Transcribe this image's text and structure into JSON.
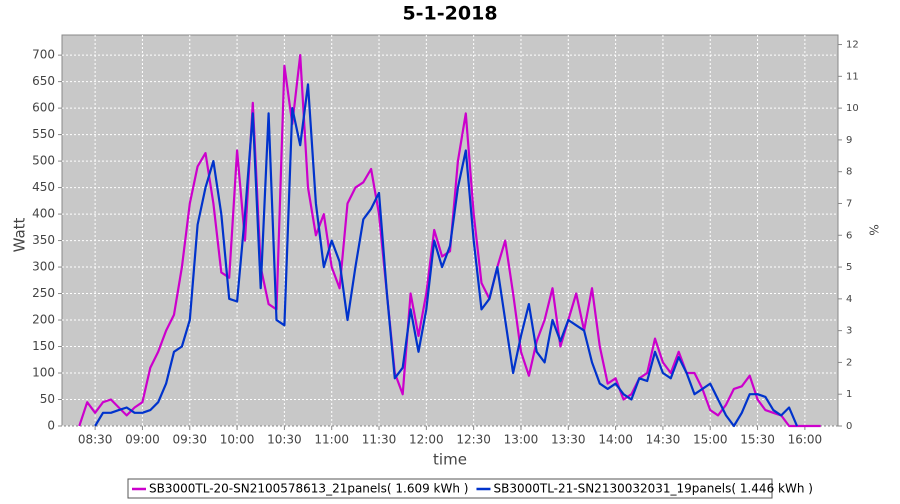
{
  "chart_data": {
    "type": "line",
    "title": "5-1-2018",
    "xlabel": "time",
    "ylabel": "Watt",
    "y2label": "%",
    "x": [
      "08:20",
      "08:25",
      "08:30",
      "08:35",
      "08:40",
      "08:45",
      "08:50",
      "08:55",
      "09:00",
      "09:05",
      "09:10",
      "09:15",
      "09:20",
      "09:25",
      "09:30",
      "09:35",
      "09:40",
      "09:45",
      "09:50",
      "09:55",
      "10:00",
      "10:05",
      "10:10",
      "10:15",
      "10:20",
      "10:25",
      "10:30",
      "10:35",
      "10:40",
      "10:45",
      "10:50",
      "10:55",
      "11:00",
      "11:05",
      "11:10",
      "11:15",
      "11:20",
      "11:25",
      "11:30",
      "11:35",
      "11:40",
      "11:45",
      "11:50",
      "11:55",
      "12:00",
      "12:05",
      "12:10",
      "12:15",
      "12:20",
      "12:25",
      "12:30",
      "12:35",
      "12:40",
      "12:45",
      "12:50",
      "12:55",
      "13:00",
      "13:05",
      "13:10",
      "13:15",
      "13:20",
      "13:25",
      "13:30",
      "13:35",
      "13:40",
      "13:45",
      "13:50",
      "13:55",
      "14:00",
      "14:05",
      "14:10",
      "14:15",
      "14:20",
      "14:25",
      "14:30",
      "14:35",
      "14:40",
      "14:45",
      "14:50",
      "14:55",
      "15:00",
      "15:05",
      "15:10",
      "15:15",
      "15:20",
      "15:25",
      "15:30",
      "15:35",
      "15:40",
      "15:45",
      "15:50",
      "15:55",
      "16:00",
      "16:05",
      "16:10"
    ],
    "series": [
      {
        "name": "SB3000TL-20-SN2100578613_21panels( 1.609 kWh )",
        "color": "#cc00cc",
        "values": [
          0,
          45,
          25,
          45,
          50,
          35,
          20,
          35,
          45,
          110,
          140,
          180,
          210,
          300,
          420,
          490,
          515,
          420,
          290,
          280,
          520,
          350,
          610,
          300,
          230,
          220,
          680,
          570,
          700,
          450,
          360,
          400,
          300,
          260,
          420,
          450,
          460,
          485,
          400,
          250,
          100,
          60,
          250,
          170,
          250,
          370,
          320,
          330,
          500,
          590,
          400,
          270,
          240,
          300,
          350,
          250,
          140,
          95,
          160,
          200,
          260,
          150,
          200,
          250,
          180,
          260,
          150,
          80,
          90,
          50,
          60,
          90,
          100,
          165,
          120,
          100,
          140,
          100,
          100,
          70,
          30,
          20,
          40,
          70,
          75,
          95,
          50,
          30,
          25,
          20,
          0,
          0,
          0,
          0,
          0
        ]
      },
      {
        "name": "SB3000TL-21-SN2130032031_19panels( 1.446 kWh )",
        "color": "#0033cc",
        "values": [
          null,
          null,
          0,
          25,
          25,
          30,
          35,
          25,
          25,
          30,
          45,
          80,
          140,
          150,
          200,
          380,
          450,
          500,
          400,
          240,
          235,
          400,
          590,
          260,
          590,
          200,
          190,
          600,
          530,
          645,
          420,
          300,
          350,
          310,
          200,
          300,
          390,
          410,
          440,
          250,
          90,
          110,
          220,
          140,
          220,
          350,
          300,
          340,
          450,
          520,
          350,
          220,
          240,
          300,
          200,
          100,
          170,
          230,
          140,
          120,
          200,
          160,
          200,
          190,
          180,
          120,
          80,
          70,
          80,
          60,
          50,
          90,
          85,
          140,
          100,
          90,
          130,
          100,
          60,
          70,
          80,
          50,
          20,
          0,
          25,
          60,
          60,
          55,
          30,
          20,
          35,
          0,
          null,
          null,
          null
        ]
      }
    ],
    "xlim": [
      "08:09",
      "16:21"
    ],
    "xticks": [
      "08:30",
      "09:00",
      "09:30",
      "10:00",
      "10:30",
      "11:00",
      "11:30",
      "12:00",
      "12:30",
      "13:00",
      "13:30",
      "14:00",
      "14:30",
      "15:00",
      "15:30",
      "16:00"
    ],
    "ylim": [
      0,
      738
    ],
    "yticks": [
      0,
      50,
      100,
      150,
      200,
      250,
      300,
      350,
      400,
      450,
      500,
      550,
      600,
      650,
      700
    ],
    "y2lim": [
      0,
      12.3
    ],
    "y2ticks": [
      0,
      1,
      2,
      3,
      4,
      5,
      6,
      7,
      8,
      9,
      10,
      11,
      12
    ],
    "grid": true
  }
}
